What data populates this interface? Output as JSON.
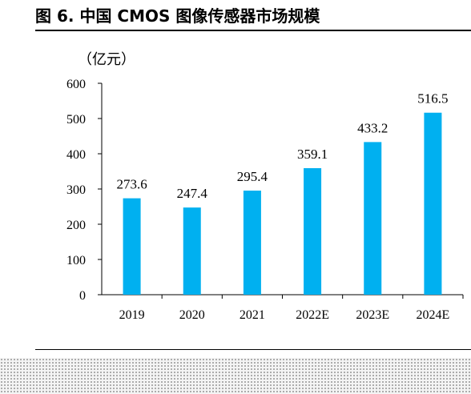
{
  "chart_data": {
    "type": "bar",
    "title": "图 6. 中国 CMOS 图像传感器市场规模",
    "unit_label": "（亿元）",
    "categories": [
      "2019",
      "2020",
      "2021",
      "2022E",
      "2023E",
      "2024E"
    ],
    "values": [
      273.6,
      247.4,
      295.4,
      359.1,
      433.2,
      516.5
    ],
    "value_labels": [
      "273.6",
      "247.4",
      "295.4",
      "359.1",
      "433.2",
      "516.5"
    ],
    "ylim": [
      0,
      600
    ],
    "yticks": [
      "0",
      "100",
      "200",
      "300",
      "400",
      "500",
      "600"
    ],
    "grid": false,
    "bar_color": "#00b0f0"
  }
}
